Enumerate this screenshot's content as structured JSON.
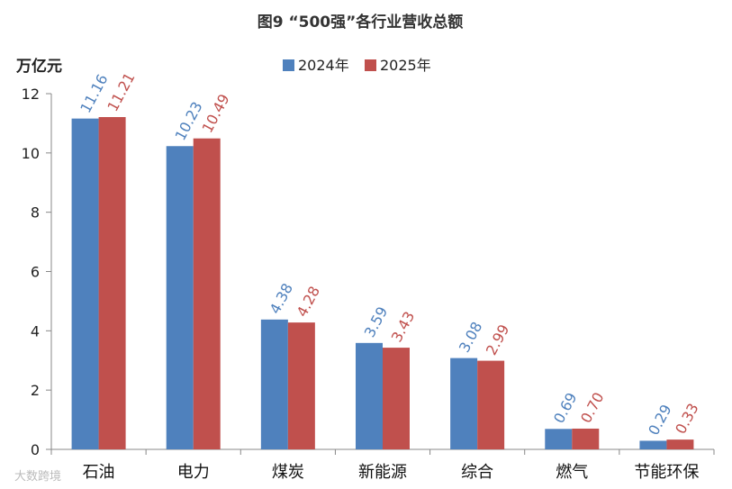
{
  "colors": {
    "series_2024": "#4f81bd",
    "series_2025": "#c0504d",
    "axis": "#888888"
  },
  "watermark": "大数跨境",
  "chart_data": {
    "type": "bar",
    "title": "图9 “500强”各行业营收总额",
    "ylabel": "万亿元",
    "xlabel": "",
    "ylim": [
      0,
      12
    ],
    "yticks": [
      0,
      2,
      4,
      6,
      8,
      10,
      12
    ],
    "grid": false,
    "legend_position": "top-center",
    "categories": [
      "石油",
      "电力",
      "煤炭",
      "新能源",
      "综合",
      "燃气",
      "节能环保"
    ],
    "series": [
      {
        "name": "2024年",
        "values": [
          11.16,
          10.23,
          4.38,
          3.59,
          3.08,
          0.69,
          0.29
        ],
        "labels": [
          "11.16",
          "10.23",
          "4.38",
          "3.59",
          "3.08",
          "0.69",
          "0.29"
        ]
      },
      {
        "name": "2025年",
        "values": [
          11.21,
          10.49,
          4.28,
          3.43,
          2.99,
          0.7,
          0.33
        ],
        "labels": [
          "11.21",
          "10.49",
          "4.28",
          "3.43",
          "2.99",
          "0.70",
          "0.33"
        ]
      }
    ]
  }
}
